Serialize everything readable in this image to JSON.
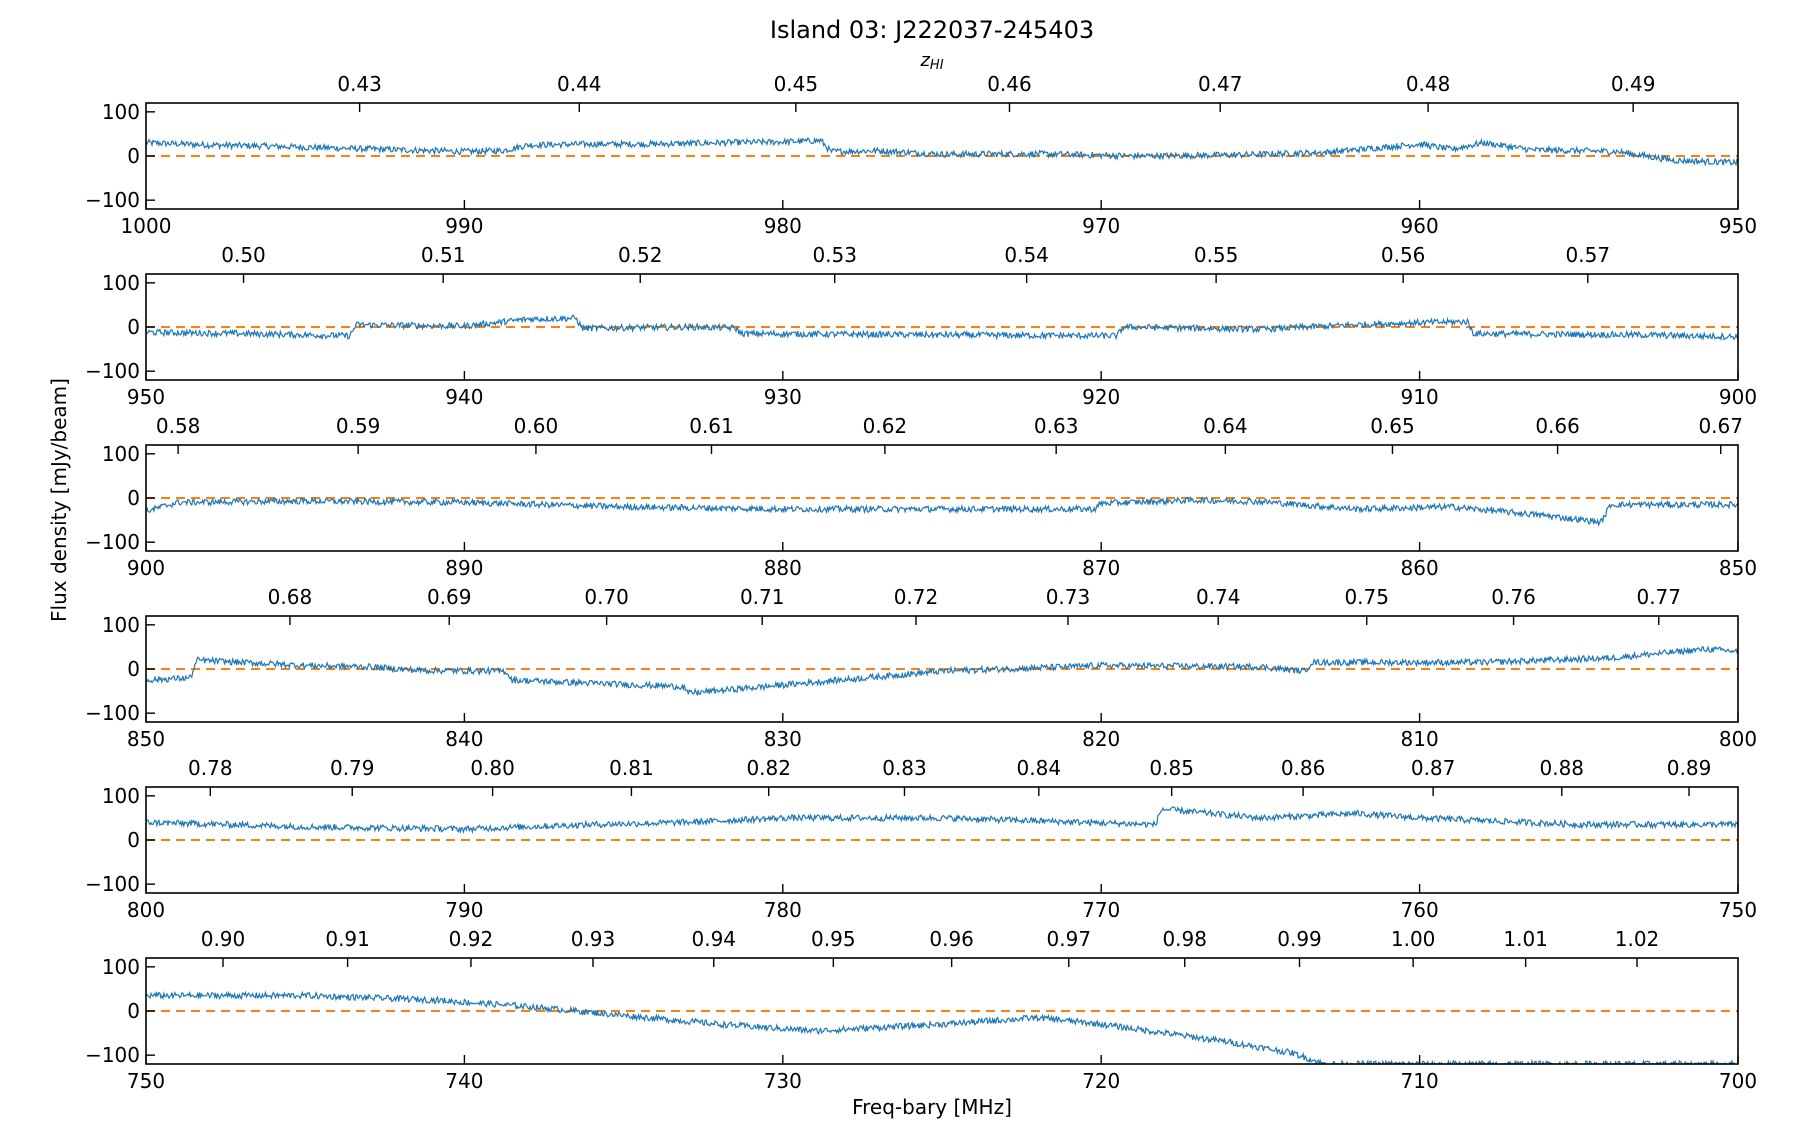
{
  "title": "Island 03: J222037-245403",
  "z_axis_label": "z",
  "z_axis_label_sub": "HI",
  "xlabel": "Freq-bary [MHz]",
  "ylabel": "Flux density [mJy/beam]",
  "colors": {
    "spectrum": "#1f77b4",
    "zero_line": "#ff7f0e",
    "axes": "#000000"
  },
  "chart_data": [
    {
      "type": "line",
      "xlim": [
        1000,
        950
      ],
      "ylim": [
        -120,
        120
      ],
      "xticks": [
        1000,
        990,
        980,
        970,
        960,
        950
      ],
      "yticks": [
        100,
        0,
        -100
      ],
      "zticks": [
        "0.43",
        "0.44",
        "0.45",
        "0.46",
        "0.47",
        "0.48",
        "0.49"
      ],
      "series": [
        {
          "x": [
            1000,
            998,
            996,
            994,
            992,
            990,
            988.8,
            988,
            986,
            984,
            982,
            980,
            978.8,
            978.5,
            977,
            976,
            975,
            972,
            969,
            966,
            963,
            960,
            959,
            958,
            956.5,
            955,
            953.8,
            952,
            950
          ],
          "y": [
            30,
            25,
            22,
            18,
            14,
            10,
            12,
            25,
            27,
            27,
            30,
            32,
            35,
            10,
            12,
            8,
            4,
            5,
            0,
            2,
            8,
            27,
            15,
            30,
            14,
            12,
            10,
            -10,
            -15
          ]
        }
      ],
      "baseline": 0
    },
    {
      "type": "line",
      "xlim": [
        950,
        900
      ],
      "ylim": [
        -120,
        120
      ],
      "xticks": [
        950,
        940,
        930,
        920,
        910,
        900
      ],
      "yticks": [
        100,
        0,
        -100
      ],
      "zticks": [
        "0.50",
        "0.51",
        "0.52",
        "0.53",
        "0.54",
        "0.55",
        "0.56",
        "0.57"
      ],
      "series": [
        {
          "x": [
            950,
            947,
            943.6,
            943.4,
            940,
            938,
            936.5,
            936.3,
            933,
            931.5,
            931.3,
            925,
            919.5,
            919.3,
            915,
            912,
            910,
            908.5,
            908.3,
            903,
            900
          ],
          "y": [
            -12,
            -15,
            -20,
            5,
            2,
            18,
            20,
            -3,
            0,
            -2,
            -15,
            -18,
            -20,
            0,
            -5,
            5,
            10,
            12,
            -15,
            -18,
            -22
          ]
        }
      ],
      "baseline": 0
    },
    {
      "type": "line",
      "xlim": [
        900,
        850
      ],
      "ylim": [
        -120,
        120
      ],
      "xticks": [
        900,
        890,
        880,
        870,
        860,
        850
      ],
      "yticks": [
        100,
        0,
        -100
      ],
      "zticks": [
        "0.58",
        "0.59",
        "0.60",
        "0.61",
        "0.62",
        "0.63",
        "0.64",
        "0.65",
        "0.66",
        "0.67"
      ],
      "series": [
        {
          "x": [
            900,
            899,
            895,
            890,
            885,
            880,
            875,
            870.2,
            870,
            867,
            865,
            862,
            859,
            856,
            854.3,
            854,
            850
          ],
          "y": [
            -30,
            -10,
            -7,
            -10,
            -20,
            -25,
            -25,
            -25,
            -12,
            -5,
            -8,
            -25,
            -20,
            -40,
            -55,
            -15,
            -15
          ]
        }
      ],
      "baseline": 0
    },
    {
      "type": "line",
      "xlim": [
        850,
        800
      ],
      "ylim": [
        -120,
        120
      ],
      "xticks": [
        850,
        840,
        830,
        820,
        810,
        800
      ],
      "yticks": [
        100,
        0,
        -100
      ],
      "zticks": [
        "0.68",
        "0.69",
        "0.70",
        "0.71",
        "0.72",
        "0.73",
        "0.74",
        "0.75",
        "0.76",
        "0.77"
      ],
      "series": [
        {
          "x": [
            850,
            848.6,
            848.4,
            845,
            843,
            841.5,
            838.7,
            838.5,
            835,
            833.1,
            833,
            829,
            825,
            820,
            815,
            813.6,
            813.4,
            808,
            804,
            801,
            800
          ],
          "y": [
            -25,
            -20,
            20,
            8,
            5,
            -3,
            -5,
            -25,
            -35,
            -40,
            -55,
            -30,
            -5,
            8,
            5,
            -5,
            15,
            15,
            25,
            45,
            40
          ]
        }
      ],
      "baseline": 0
    },
    {
      "type": "line",
      "xlim": [
        800,
        750
      ],
      "ylim": [
        -120,
        120
      ],
      "xticks": [
        800,
        790,
        780,
        770,
        760,
        750
      ],
      "yticks": [
        100,
        0,
        -100
      ],
      "zticks": [
        "0.78",
        "0.79",
        "0.80",
        "0.81",
        "0.82",
        "0.83",
        "0.84",
        "0.85",
        "0.86",
        "0.87",
        "0.88",
        "0.89"
      ],
      "series": [
        {
          "x": [
            800,
            795,
            790,
            786,
            783,
            780,
            775,
            768.3,
            768.1,
            765,
            762,
            760,
            755,
            750
          ],
          "y": [
            40,
            30,
            25,
            35,
            40,
            50,
            50,
            35,
            70,
            50,
            60,
            50,
            35,
            35
          ]
        }
      ],
      "baseline": 0
    },
    {
      "type": "line",
      "xlim": [
        750,
        700
      ],
      "ylim": [
        -120,
        120
      ],
      "xticks": [
        750,
        740,
        730,
        720,
        710,
        700
      ],
      "yticks": [
        100,
        0,
        -100
      ],
      "zticks": [
        "0.90",
        "0.91",
        "0.92",
        "0.93",
        "0.94",
        "0.95",
        "0.96",
        "0.97",
        "0.98",
        "0.99",
        "1.00",
        "1.01",
        "1.02"
      ],
      "series": [
        {
          "x": [
            750,
            745,
            741,
            738,
            735,
            732,
            729,
            725,
            722,
            720,
            718,
            716,
            714,
            713
          ],
          "y": [
            35,
            35,
            25,
            10,
            -10,
            -30,
            -45,
            -30,
            -15,
            -30,
            -50,
            -70,
            -95,
            -120
          ]
        }
      ],
      "baseline": 0
    }
  ]
}
